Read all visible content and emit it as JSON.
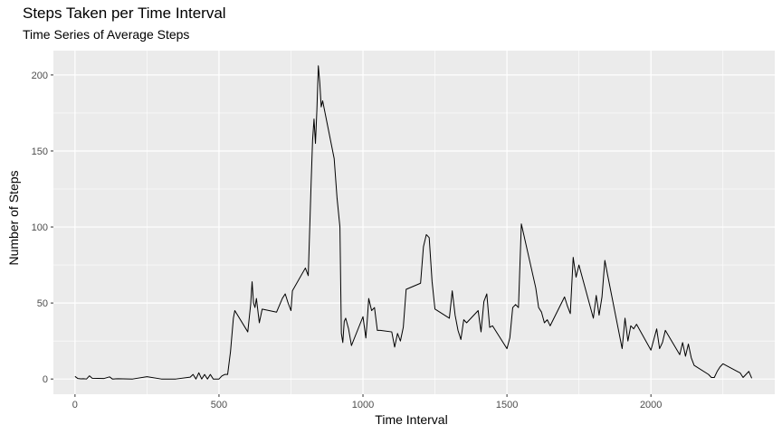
{
  "chart_data": {
    "type": "line",
    "title": "Steps Taken per Time Interval",
    "subtitle": "Time Series of Average Steps",
    "xlabel": "Time Interval",
    "ylabel": "Number of Steps",
    "xlim": [
      -75,
      2430
    ],
    "ylim": [
      -10,
      216
    ],
    "x_ticks": [
      0,
      500,
      1000,
      1500,
      2000
    ],
    "y_ticks": [
      0,
      50,
      100,
      150,
      200
    ],
    "grid": true,
    "background": "#ebebeb",
    "grid_color": "#ffffff",
    "line_color": "#000000",
    "series": [
      {
        "x": [
          0,
          10,
          20,
          30,
          40,
          50,
          60,
          100,
          120,
          130,
          150,
          200,
          250,
          300,
          350,
          400,
          410,
          420,
          430,
          440,
          450,
          460,
          470,
          480,
          500,
          510,
          520,
          530,
          540,
          550,
          555,
          600,
          610,
          615,
          620,
          625,
          630,
          640,
          650,
          700,
          720,
          730,
          740,
          750,
          755,
          800,
          810,
          820,
          825,
          830,
          835,
          840,
          845,
          850,
          855,
          860,
          900,
          910,
          920,
          925,
          930,
          935,
          940,
          950,
          960,
          1000,
          1010,
          1015,
          1020,
          1030,
          1040,
          1050,
          1060,
          1100,
          1110,
          1120,
          1130,
          1140,
          1150,
          1200,
          1210,
          1220,
          1230,
          1240,
          1250,
          1300,
          1310,
          1320,
          1330,
          1340,
          1350,
          1360,
          1400,
          1410,
          1420,
          1430,
          1440,
          1450,
          1500,
          1510,
          1520,
          1530,
          1540,
          1550,
          1600,
          1610,
          1620,
          1630,
          1640,
          1650,
          1700,
          1710,
          1720,
          1730,
          1740,
          1750,
          1800,
          1810,
          1820,
          1830,
          1840,
          1850,
          1900,
          1910,
          1920,
          1930,
          1940,
          1950,
          2000,
          2010,
          2020,
          2030,
          2040,
          2050,
          2100,
          2110,
          2120,
          2130,
          2140,
          2150,
          2200,
          2210,
          2220,
          2230,
          2240,
          2250,
          2300,
          2310,
          2320,
          2330,
          2340,
          2350
        ],
        "values": [
          1.7,
          0.3,
          0.1,
          0.2,
          0.0,
          2.1,
          0.5,
          0.3,
          1.4,
          0.0,
          0.2,
          0.0,
          1.5,
          0.0,
          0.0,
          1.2,
          3.0,
          0.0,
          4.1,
          0.0,
          3.0,
          0.0,
          3.0,
          0.0,
          0.0,
          2.0,
          3.0,
          3.0,
          18.0,
          40.0,
          45.0,
          31.0,
          49.0,
          64.0,
          50.0,
          47.0,
          53.0,
          37.0,
          46.0,
          44.0,
          53.0,
          56.0,
          50.0,
          45.0,
          58.0,
          73.0,
          68.0,
          129.0,
          157.0,
          171.0,
          155.0,
          177.0,
          206.0,
          195.0,
          179.0,
          183.0,
          145.0,
          119.0,
          100.0,
          30.0,
          24.0,
          38.0,
          40.0,
          33.0,
          22.0,
          41.0,
          27.0,
          39.0,
          53.0,
          45.0,
          47.0,
          32.0,
          32.0,
          31.0,
          21.0,
          30.0,
          25.0,
          34.0,
          59.0,
          63.0,
          87.0,
          95.0,
          93.0,
          64.0,
          46.0,
          40.0,
          58.0,
          42.0,
          32.0,
          26.0,
          39.0,
          37.0,
          45.0,
          31.0,
          51.0,
          56.0,
          34.0,
          35.0,
          20.0,
          27.0,
          47.0,
          49.0,
          47.0,
          102.0,
          60.0,
          47.0,
          44.0,
          37.0,
          39.0,
          35.0,
          54.0,
          48.0,
          43.0,
          80.0,
          67.0,
          75.0,
          40.0,
          55.0,
          42.0,
          54.0,
          78.0,
          68.0,
          20.0,
          40.0,
          25.0,
          35.0,
          33.0,
          36.0,
          19.0,
          26.0,
          33.0,
          20.0,
          24.0,
          32.0,
          16.0,
          24.0,
          15.0,
          23.0,
          14.0,
          9.0,
          3.0,
          1.0,
          1.0,
          5.0,
          8.0,
          10.0,
          5.0,
          4.0,
          1.0,
          3.0,
          5.0,
          0.5
        ]
      }
    ]
  }
}
